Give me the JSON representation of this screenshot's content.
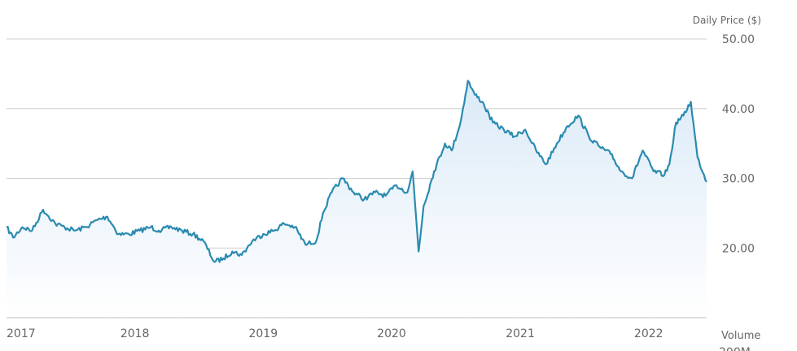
{
  "chart_data": {
    "type": "area",
    "ylabel": "Daily Price ($)",
    "ylim": [
      10,
      50
    ],
    "yticks": [
      "20.00",
      "30.00",
      "40.00",
      "50.00"
    ],
    "xticks": [
      "2017",
      "2018",
      "2019",
      "2020",
      "2021",
      "2022"
    ],
    "xlim": [
      "2017-01-01",
      "2022-06-15"
    ],
    "volume_label": "Volume",
    "grid": true,
    "colors": {
      "line": "#2a8bb0",
      "fill_top": "#dbeaf7",
      "fill_bottom": "#ffffff",
      "grid": "#cfcfcf"
    },
    "series": [
      {
        "x": [
          "2017-01-01",
          "2017-01-20",
          "2017-02-15",
          "2017-03-15",
          "2017-04-15",
          "2017-05-20",
          "2017-06-15",
          "2017-07-15",
          "2017-08-15",
          "2017-09-15",
          "2017-10-15",
          "2017-11-15",
          "2017-12-15",
          "2018-01-15",
          "2018-02-15",
          "2018-03-10",
          "2018-04-15",
          "2018-05-15",
          "2018-06-15",
          "2018-07-15",
          "2018-08-15",
          "2018-09-10",
          "2018-10-05",
          "2018-11-01",
          "2018-12-01",
          "2019-01-01",
          "2019-02-01",
          "2019-03-01",
          "2019-04-01",
          "2019-05-01",
          "2019-06-01",
          "2019-06-20",
          "2019-07-15",
          "2019-08-15",
          "2019-09-15",
          "2019-10-15",
          "2019-11-15",
          "2019-12-15",
          "2020-01-15",
          "2020-02-15",
          "2020-03-01",
          "2020-03-18",
          "2020-04-01",
          "2020-05-01",
          "2020-06-01",
          "2020-06-20",
          "2020-07-15",
          "2020-08-05",
          "2020-08-25",
          "2020-09-15",
          "2020-10-15",
          "2020-11-15",
          "2020-12-15",
          "2021-01-15",
          "2021-02-15",
          "2021-03-15",
          "2021-04-15",
          "2021-05-15",
          "2021-06-15",
          "2021-07-15",
          "2021-08-15",
          "2021-09-15",
          "2021-10-15",
          "2021-11-15",
          "2021-12-15",
          "2022-01-15",
          "2022-02-15",
          "2022-03-01",
          "2022-03-20",
          "2022-04-10",
          "2022-05-01",
          "2022-05-20",
          "2022-06-15"
        ],
        "values": [
          23,
          21.5,
          23,
          22.5,
          25.5,
          23.5,
          23,
          22.5,
          23,
          24,
          24.5,
          22,
          22,
          22.5,
          23,
          22.5,
          23,
          22.5,
          22,
          21,
          18,
          18.5,
          19.5,
          19,
          21,
          22,
          22.5,
          23.5,
          23,
          20.5,
          21,
          25,
          28,
          30,
          28,
          27,
          28,
          27.5,
          29,
          28,
          31,
          19.5,
          26,
          31,
          35,
          34,
          38,
          44,
          42,
          41,
          38,
          37,
          36,
          37,
          34,
          32,
          35,
          37.5,
          39,
          36,
          34.5,
          33.5,
          31,
          30,
          34,
          31,
          30.5,
          32,
          38,
          39,
          41,
          33,
          29.5
        ]
      }
    ]
  }
}
